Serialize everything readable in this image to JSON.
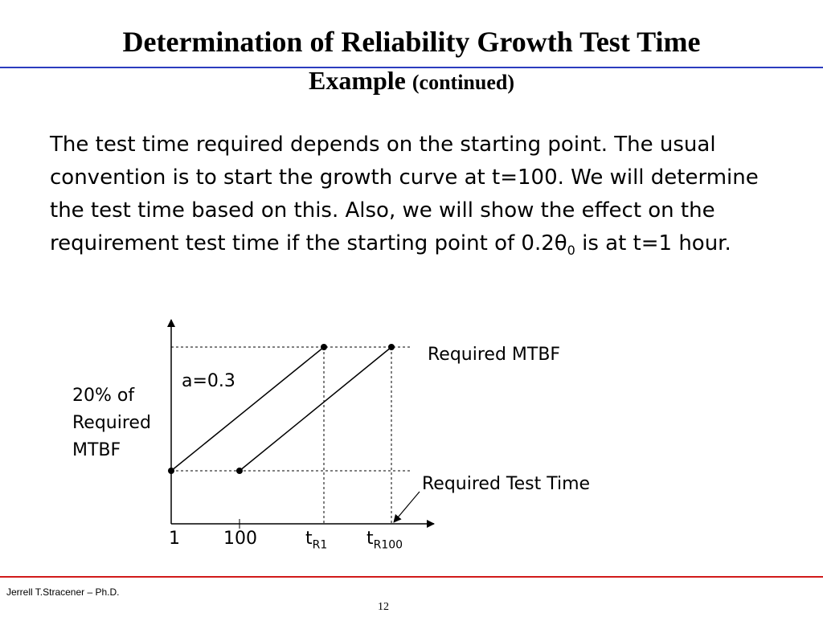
{
  "title": {
    "line1": "Determination of Reliability Growth Test Time",
    "line2_main": "Example",
    "line2_small": "(continued)"
  },
  "body": {
    "part1": "The test time required depends on the starting point.  The usual convention is to start the growth curve at t=100.  We will determine the test time based on this. Also, we will show the effect on the requirement test time if the starting point of 0.2θ",
    "sub": "0",
    "part2": " is at t=1 hour."
  },
  "diagram": {
    "y_label": [
      "20% of",
      "Required",
      "MTBF"
    ],
    "slope_label": "a=0.3",
    "required_mtbf_label": "Required MTBF",
    "required_test_time_label": "Required Test Time",
    "x_ticks": {
      "t1": "1",
      "t100": "100",
      "tR1_main": "t",
      "tR1_sub": "R1",
      "tR100_main": "t",
      "tR100_sub": "R100"
    }
  },
  "footer": {
    "author": "Jerrell T.Stracener – Ph.D.",
    "page": "12"
  },
  "colors": {
    "top_rule": "#2c3cbf",
    "footer_rule": "#d11a1a"
  }
}
